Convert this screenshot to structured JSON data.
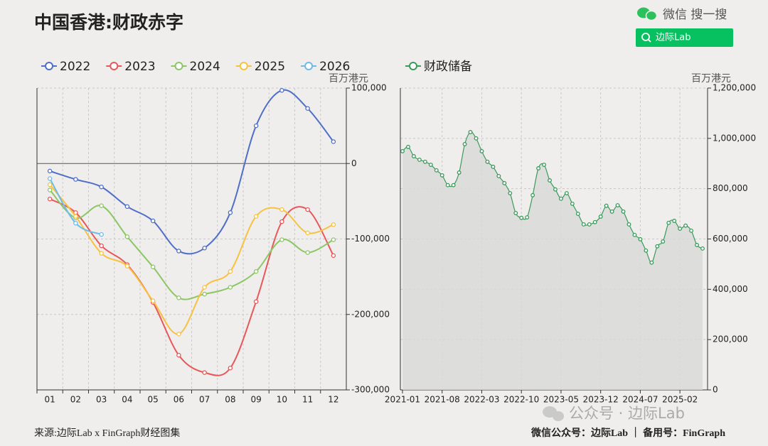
{
  "header": {
    "title": "中国香港:财政赤字",
    "search_label": "微信 搜一搜",
    "search_box": "边际Lab"
  },
  "chart_data": [
    {
      "type": "line",
      "unit": "百万港元",
      "categories": [
        "01",
        "02",
        "03",
        "04",
        "05",
        "06",
        "07",
        "08",
        "09",
        "10",
        "11",
        "12"
      ],
      "series": [
        {
          "name": "2022",
          "color": "#4f6ec8",
          "values": [
            -10000,
            -21000,
            -31000,
            -57000,
            -76000,
            -116000,
            -112000,
            -65000,
            50000,
            97000,
            73000,
            29000
          ]
        },
        {
          "name": "2023",
          "color": "#e8575a",
          "values": [
            -47000,
            -65000,
            -109000,
            -134000,
            -184000,
            -254000,
            -277000,
            -271000,
            -183000,
            -77000,
            -61000,
            -122000
          ]
        },
        {
          "name": "2024",
          "color": "#8cc665",
          "values": [
            -35000,
            -72000,
            -56000,
            -97000,
            -137000,
            -178000,
            -173000,
            -164000,
            -143000,
            -101000,
            -118000,
            -101000
          ]
        },
        {
          "name": "2025",
          "color": "#f7c23f",
          "values": [
            -28000,
            -70000,
            -119000,
            -136000,
            -182000,
            -226000,
            -164000,
            -143000,
            -70000,
            -61000,
            -92000,
            -81000
          ]
        },
        {
          "name": "2026",
          "color": "#6dbbe6",
          "values": [
            -20000,
            -79000,
            -94000,
            null,
            null,
            null,
            null,
            null,
            null,
            null,
            null,
            null
          ]
        }
      ],
      "ylim": [
        -300000,
        100000
      ],
      "yticks": [
        {
          "value": 100000,
          "label": "100,000"
        },
        0,
        {
          "value": -100000,
          "label": "-100,000"
        },
        {
          "value": -200000,
          "label": "-200,000"
        },
        {
          "value": -300000,
          "label": "-300,000"
        }
      ],
      "grid": true,
      "legend": "top"
    },
    {
      "type": "area",
      "unit": "百万港元",
      "categories": [
        "2021-01",
        null,
        null,
        null,
        null,
        null,
        null,
        "2021-08",
        null,
        null,
        null,
        null,
        null,
        null,
        "2022-03",
        null,
        null,
        null,
        null,
        null,
        null,
        "2022-10",
        null,
        null,
        null,
        null,
        null,
        null,
        "2023-05",
        null,
        null,
        null,
        null,
        null,
        null,
        "2023-12",
        null,
        null,
        null,
        null,
        null,
        null,
        "2024-07",
        null,
        null,
        null,
        null,
        null,
        null,
        "2025-02",
        null,
        null,
        null,
        null
      ],
      "series": [
        {
          "name": "财政储备",
          "color": "#3a9a5b",
          "values": [
            949000,
            966000,
            929000,
            915000,
            907000,
            895000,
            873000,
            853000,
            814000,
            814000,
            864000,
            977000,
            1025000,
            1000000,
            949000,
            907000,
            887000,
            850000,
            822000,
            782000,
            703000,
            684000,
            686000,
            774000,
            881000,
            895000,
            833000,
            797000,
            760000,
            782000,
            740000,
            700000,
            658000,
            658000,
            667000,
            689000,
            732000,
            709000,
            734000,
            709000,
            658000,
            616000,
            599000,
            554000,
            506000,
            571000,
            590000,
            664000,
            672000,
            641000,
            653000,
            633000,
            576000,
            562000
          ]
        }
      ],
      "ylim": [
        0,
        1200000
      ],
      "yticks": [
        0,
        {
          "value": 200000,
          "label": "200,000"
        },
        {
          "value": 400000,
          "label": "400,000"
        },
        {
          "value": 600000,
          "label": "600,000"
        },
        {
          "value": 800000,
          "label": "800,000"
        },
        {
          "value": 1000000,
          "label": "1,000,000"
        },
        {
          "value": 1200000,
          "label": "1,200,000"
        }
      ],
      "grid": true,
      "legend": "top"
    }
  ],
  "footer": {
    "source": "来源:边际Lab x FinGraph财经图集",
    "contact": "微信公众号：边际Lab ｜ 备用号：FinGraph",
    "watermark": "公众号 · 边际Lab"
  }
}
